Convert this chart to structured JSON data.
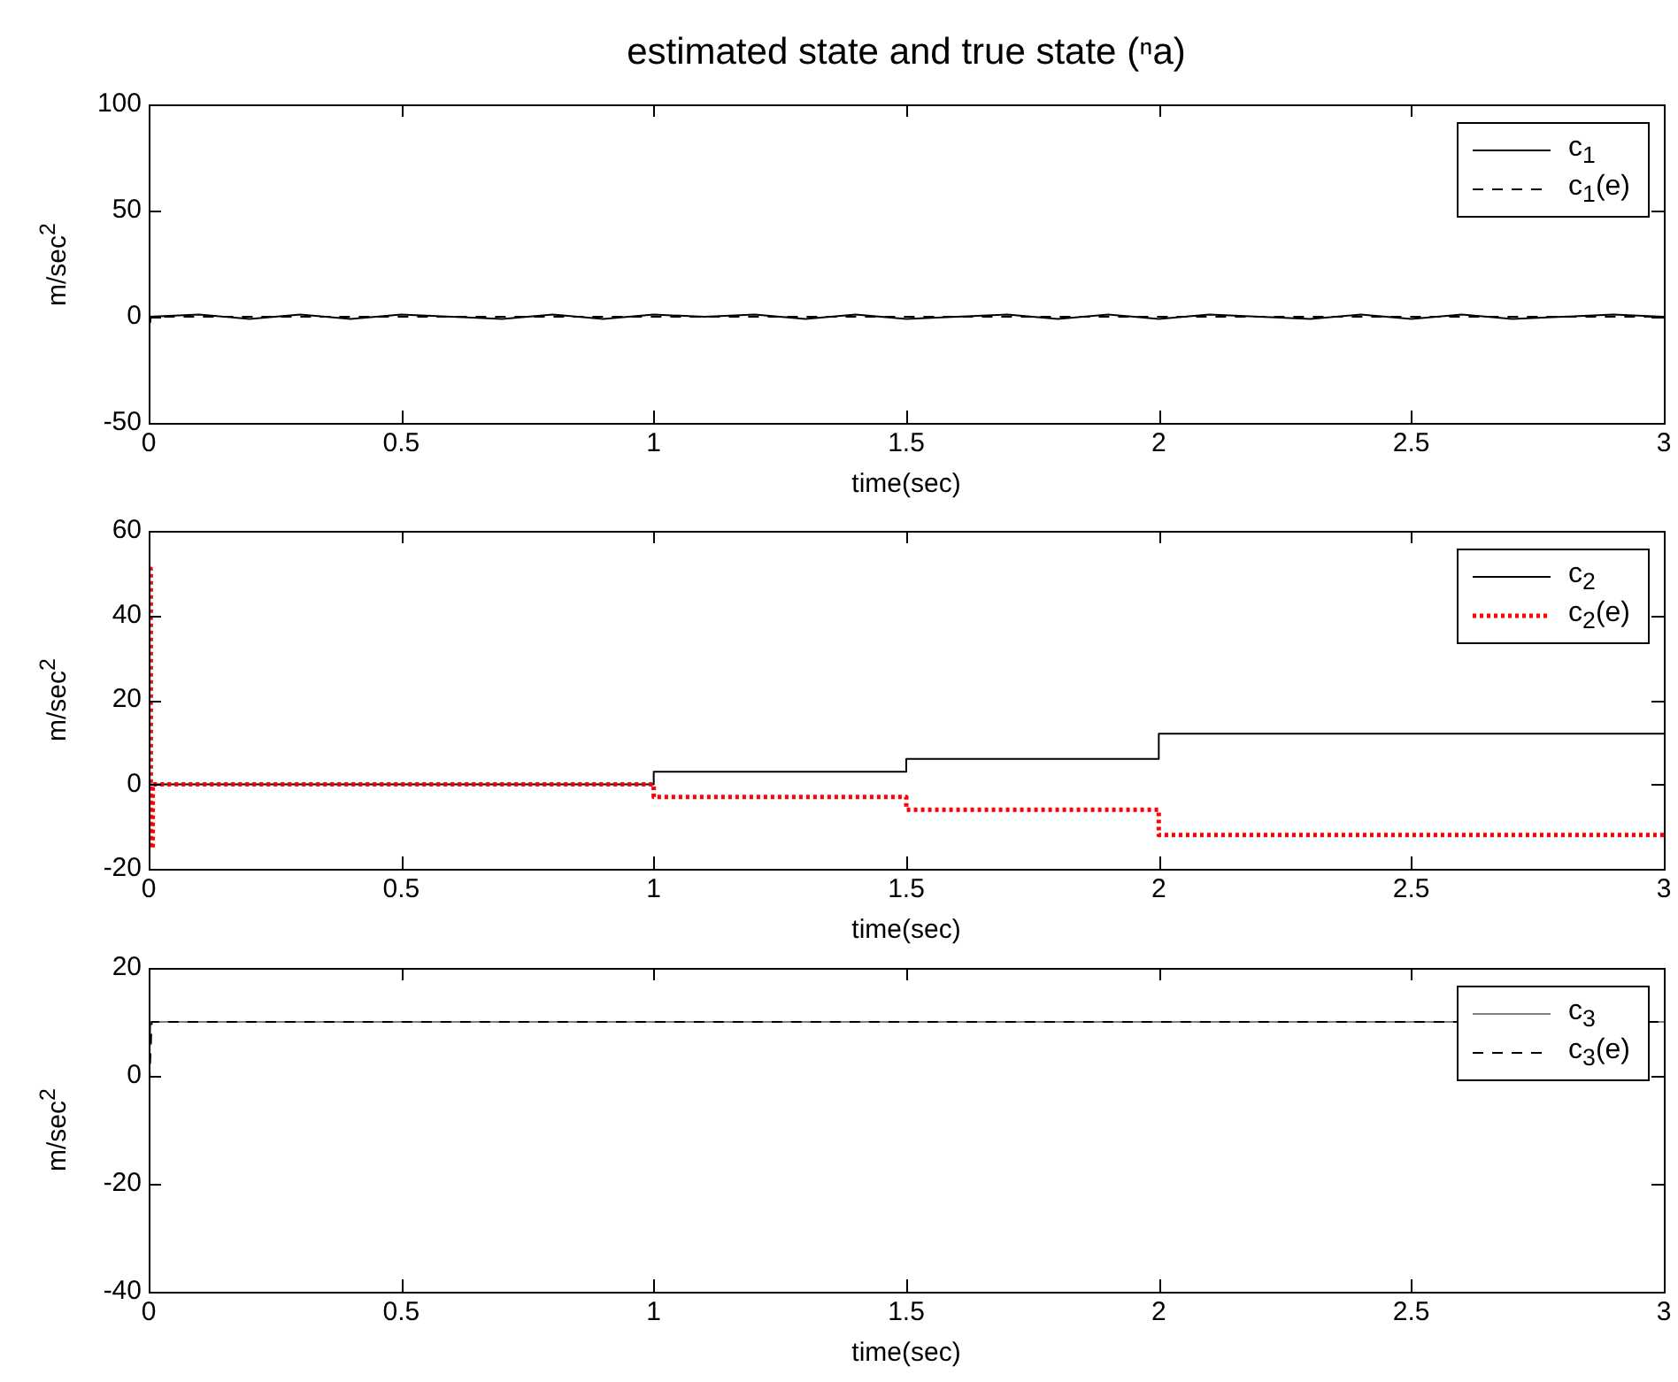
{
  "chart_data": [
    {
      "type": "line",
      "title": "estimated state and true state (ⁿa)",
      "xlabel": "time(sec)",
      "ylabel": "m/sec$^{2}$",
      "xlim": [
        0,
        3
      ],
      "xticks": [
        0,
        0.5,
        1,
        1.5,
        2,
        2.5,
        3
      ],
      "ylim": [
        -50,
        100
      ],
      "yticks": [
        -50,
        0,
        50,
        100
      ],
      "legend": "top right",
      "series": [
        {
          "name": "c$_{1}$",
          "color": "#000000",
          "line_style": "solid",
          "x": [
            0,
            0.1,
            0.2,
            0.3,
            0.4,
            0.5,
            0.6,
            0.7,
            0.8,
            0.9,
            1,
            1.1,
            1.2,
            1.3,
            1.4,
            1.5,
            1.6,
            1.7,
            1.8,
            1.9,
            2,
            2.1,
            2.2,
            2.3,
            2.4,
            2.5,
            2.6,
            2.7,
            2.8,
            2.9,
            3
          ],
          "values": [
            0,
            1,
            -1,
            1,
            -1,
            1,
            0,
            -1,
            1,
            -1,
            1,
            0,
            1,
            -1,
            1,
            -1,
            0,
            1,
            -1,
            1,
            -1,
            1,
            0,
            -1,
            1,
            -1,
            1,
            -1,
            0,
            1,
            0
          ]
        },
        {
          "name": "c$_{1}$(e)",
          "color": "#000000",
          "line_style": "dashed",
          "x": [
            0,
            0.004,
            0.008,
            3
          ],
          "values": [
            -12,
            0,
            0,
            0
          ]
        }
      ]
    },
    {
      "type": "step",
      "xlabel": "time(sec)",
      "ylabel": "m/sec$^{2}$",
      "xlim": [
        0,
        3
      ],
      "xticks": [
        0,
        0.5,
        1,
        1.5,
        2,
        2.5,
        3
      ],
      "ylim": [
        -20,
        60
      ],
      "yticks": [
        -20,
        0,
        20,
        40,
        60
      ],
      "legend": "top right",
      "series": [
        {
          "name": "c$_{2}$",
          "color": "#000000",
          "line_style": "solid",
          "x": [
            0,
            1,
            1.5,
            2,
            3
          ],
          "values": [
            0,
            3,
            6,
            12,
            12
          ]
        },
        {
          "name": "c$_{2}$(e)",
          "color": "#ff0000",
          "line_style": "dotted",
          "x": [
            0,
            0.004,
            0.008,
            1,
            1.5,
            2,
            3
          ],
          "values": [
            51,
            -15,
            0,
            -3,
            -6,
            -12,
            -12
          ]
        }
      ]
    },
    {
      "type": "line",
      "xlabel": "time(sec)",
      "ylabel": "m/sec$^{2}$",
      "xlim": [
        0,
        3
      ],
      "xticks": [
        0,
        0.5,
        1,
        1.5,
        2,
        2.5,
        3
      ],
      "ylim": [
        -40,
        20
      ],
      "yticks": [
        -40,
        -20,
        0,
        20
      ],
      "legend": "top right",
      "series": [
        {
          "name": "c$_{3}$",
          "color": "#808080",
          "line_style": "solid",
          "x": [
            0,
            0.004,
            3
          ],
          "values": [
            0,
            10,
            10
          ]
        },
        {
          "name": "c$_{3}$(e)",
          "color": "#000000",
          "line_style": "dashed",
          "x": [
            0,
            0.006,
            3
          ],
          "values": [
            -5,
            10,
            10
          ]
        }
      ]
    }
  ]
}
